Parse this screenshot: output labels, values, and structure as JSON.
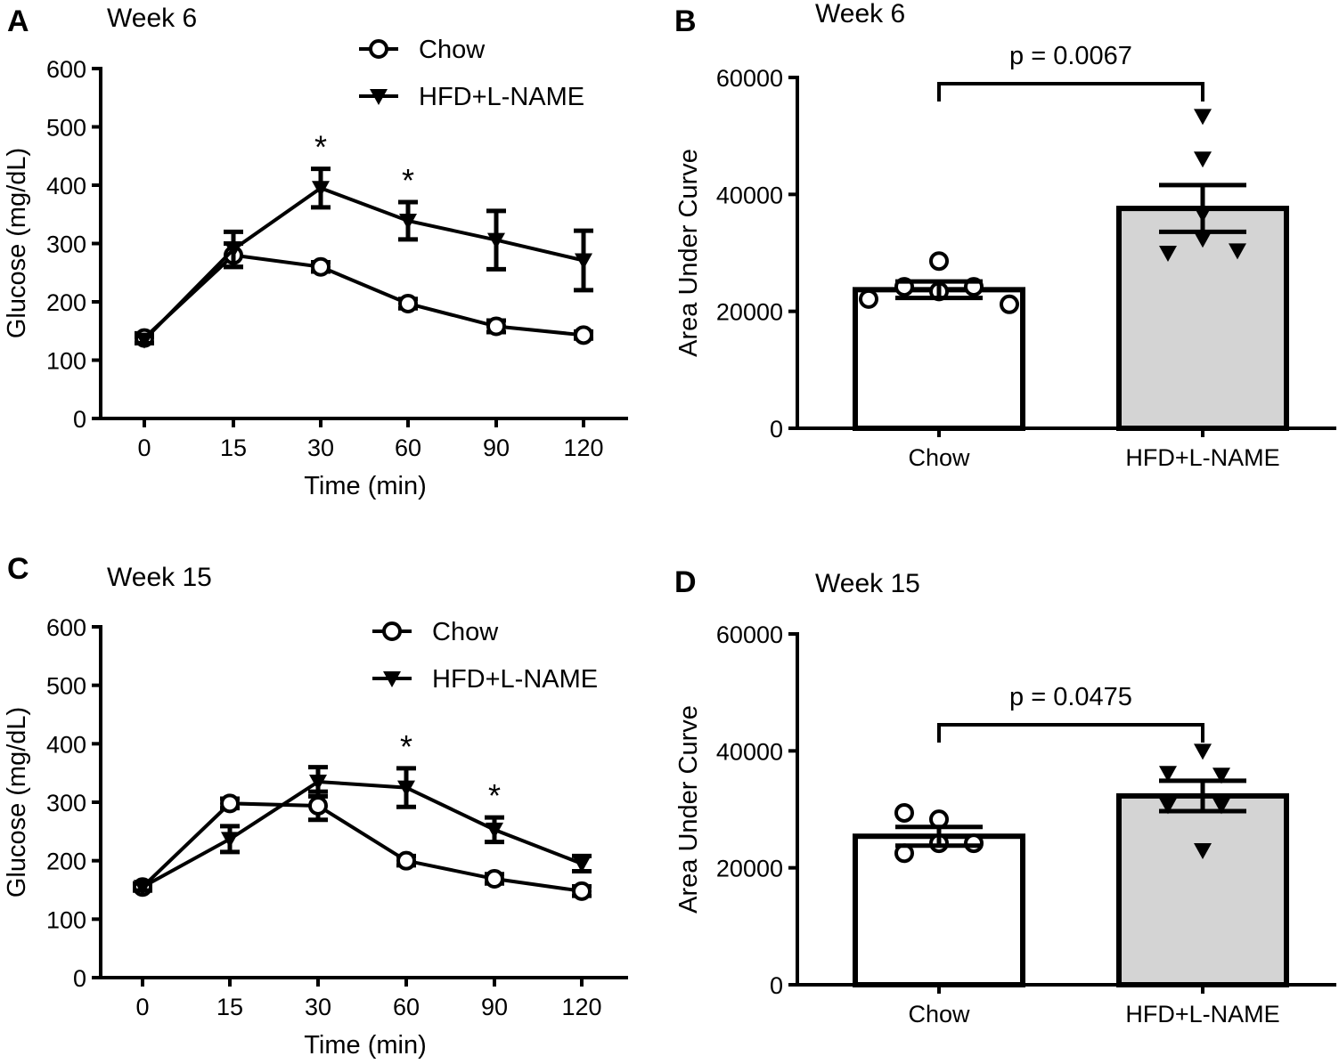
{
  "chart_data": [
    {
      "panel": "A",
      "type": "line",
      "title": "Week 6",
      "xlabel": "Time (min)",
      "ylabel": "Glucose (mg/dL)",
      "categories": [
        "0",
        "15",
        "30",
        "60",
        "90",
        "120"
      ],
      "yticks": [
        "0",
        "100",
        "200",
        "300",
        "400",
        "500",
        "600"
      ],
      "ylim": [
        0,
        600
      ],
      "series": [
        {
          "name": "Chow",
          "marker": "open-circle",
          "values": [
            138,
            280,
            260,
            197,
            158,
            143
          ],
          "errors": [
            8,
            20,
            8,
            8,
            10,
            6
          ]
        },
        {
          "name": "HFD+L-NAME",
          "marker": "filled-triangle-down",
          "values": [
            135,
            290,
            395,
            339,
            306,
            271
          ],
          "errors": [
            6,
            30,
            33,
            32,
            50,
            51
          ]
        }
      ],
      "annotations": [
        {
          "x": "30",
          "text": "*"
        },
        {
          "x": "60",
          "text": "*"
        }
      ],
      "legend": "top-right"
    },
    {
      "panel": "B",
      "type": "bar",
      "title": "Week 6",
      "ylabel": "Area Under Curve",
      "categories": [
        "Chow",
        "HFD+L-NAME"
      ],
      "yticks": [
        "0",
        "20000",
        "40000",
        "60000"
      ],
      "ylim": [
        0,
        60000
      ],
      "values": [
        23700,
        37600
      ],
      "errors": [
        1400,
        4000
      ],
      "points": [
        [
          22100,
          24200,
          28600,
          23400,
          24200,
          21200
        ],
        [
          53400,
          46100,
          36700,
          32400,
          30000,
          30400
        ]
      ],
      "bar_colors": [
        "#ffffff",
        "#d4d4d4"
      ],
      "pvalue": "p = 0.0067"
    },
    {
      "panel": "C",
      "type": "line",
      "title": "Week 15",
      "xlabel": "Time (min)",
      "ylabel": "Glucose (mg/dL)",
      "categories": [
        "0",
        "15",
        "30",
        "60",
        "90",
        "120"
      ],
      "yticks": [
        "0",
        "100",
        "200",
        "300",
        "400",
        "500",
        "600"
      ],
      "ylim": [
        0,
        600
      ],
      "series": [
        {
          "name": "Chow",
          "marker": "open-circle",
          "values": [
            155,
            298,
            294,
            200,
            169,
            148
          ],
          "errors": [
            6,
            8,
            24,
            8,
            8,
            8
          ]
        },
        {
          "name": "HFD+L-NAME",
          "marker": "filled-triangle-down",
          "values": [
            155,
            237,
            335,
            325,
            253,
            195
          ],
          "errors": [
            6,
            22,
            25,
            33,
            21,
            13
          ]
        }
      ],
      "annotations": [
        {
          "x": "60",
          "text": "*"
        },
        {
          "x": "90",
          "text": "*"
        }
      ],
      "legend": "top-right"
    },
    {
      "panel": "D",
      "type": "bar",
      "title": "Week 15",
      "ylabel": "Area Under Curve",
      "categories": [
        "Chow",
        "HFD+L-NAME"
      ],
      "yticks": [
        "0",
        "20000",
        "40000",
        "60000"
      ],
      "ylim": [
        0,
        60000
      ],
      "values": [
        25400,
        32300
      ],
      "errors": [
        1600,
        2600
      ],
      "points": [
        [
          29400,
          28300,
          22500,
          24200,
          24200
        ],
        [
          40000,
          36200,
          35900,
          30700,
          30700,
          23000
        ]
      ],
      "bar_colors": [
        "#ffffff",
        "#d4d4d4"
      ],
      "pvalue": "p = 0.0475"
    }
  ]
}
